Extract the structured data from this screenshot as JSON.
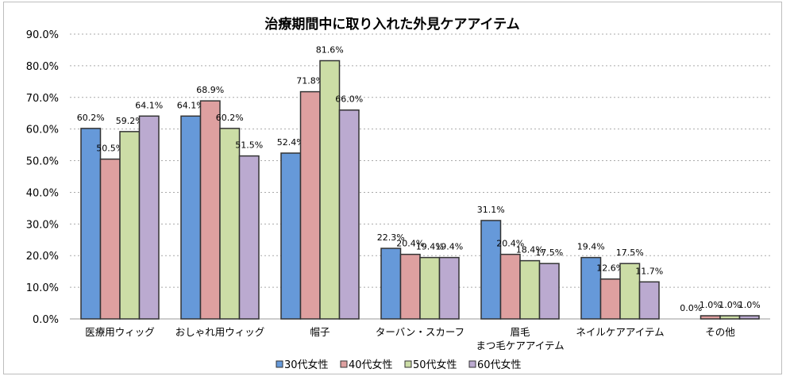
{
  "chart_data": {
    "type": "bar",
    "title": "治療期間中に取り入れた外見ケアアイテム",
    "categories": [
      "医療用ウィッグ",
      "おしゃれ用ウィッグ",
      "帽子",
      "ターバン・スカーフ",
      "眉毛\nまつ毛ケアアイテム",
      "ネイルケアアイテム",
      "その他"
    ],
    "series": [
      {
        "name": "30代女性",
        "color": "#6699D9",
        "values": [
          60.2,
          64.1,
          52.4,
          22.3,
          31.1,
          19.4,
          0.0
        ]
      },
      {
        "name": "40代女性",
        "color": "#DEA0A0",
        "values": [
          50.5,
          68.9,
          71.8,
          20.4,
          20.4,
          12.6,
          1.0
        ]
      },
      {
        "name": "50代女性",
        "color": "#CCDDA6",
        "values": [
          59.2,
          60.2,
          81.6,
          19.4,
          18.4,
          17.5,
          1.0
        ]
      },
      {
        "name": "60代女性",
        "color": "#BBAAD0",
        "values": [
          64.1,
          51.5,
          66.0,
          19.4,
          17.5,
          11.7,
          1.0
        ]
      }
    ],
    "ylim": [
      0,
      90
    ],
    "yticks": [
      "0.0%",
      "10.0%",
      "20.0%",
      "30.0%",
      "40.0%",
      "50.0%",
      "60.0%",
      "70.0%",
      "80.0%",
      "90.0%"
    ],
    "grid": true,
    "legend": "bottom"
  }
}
